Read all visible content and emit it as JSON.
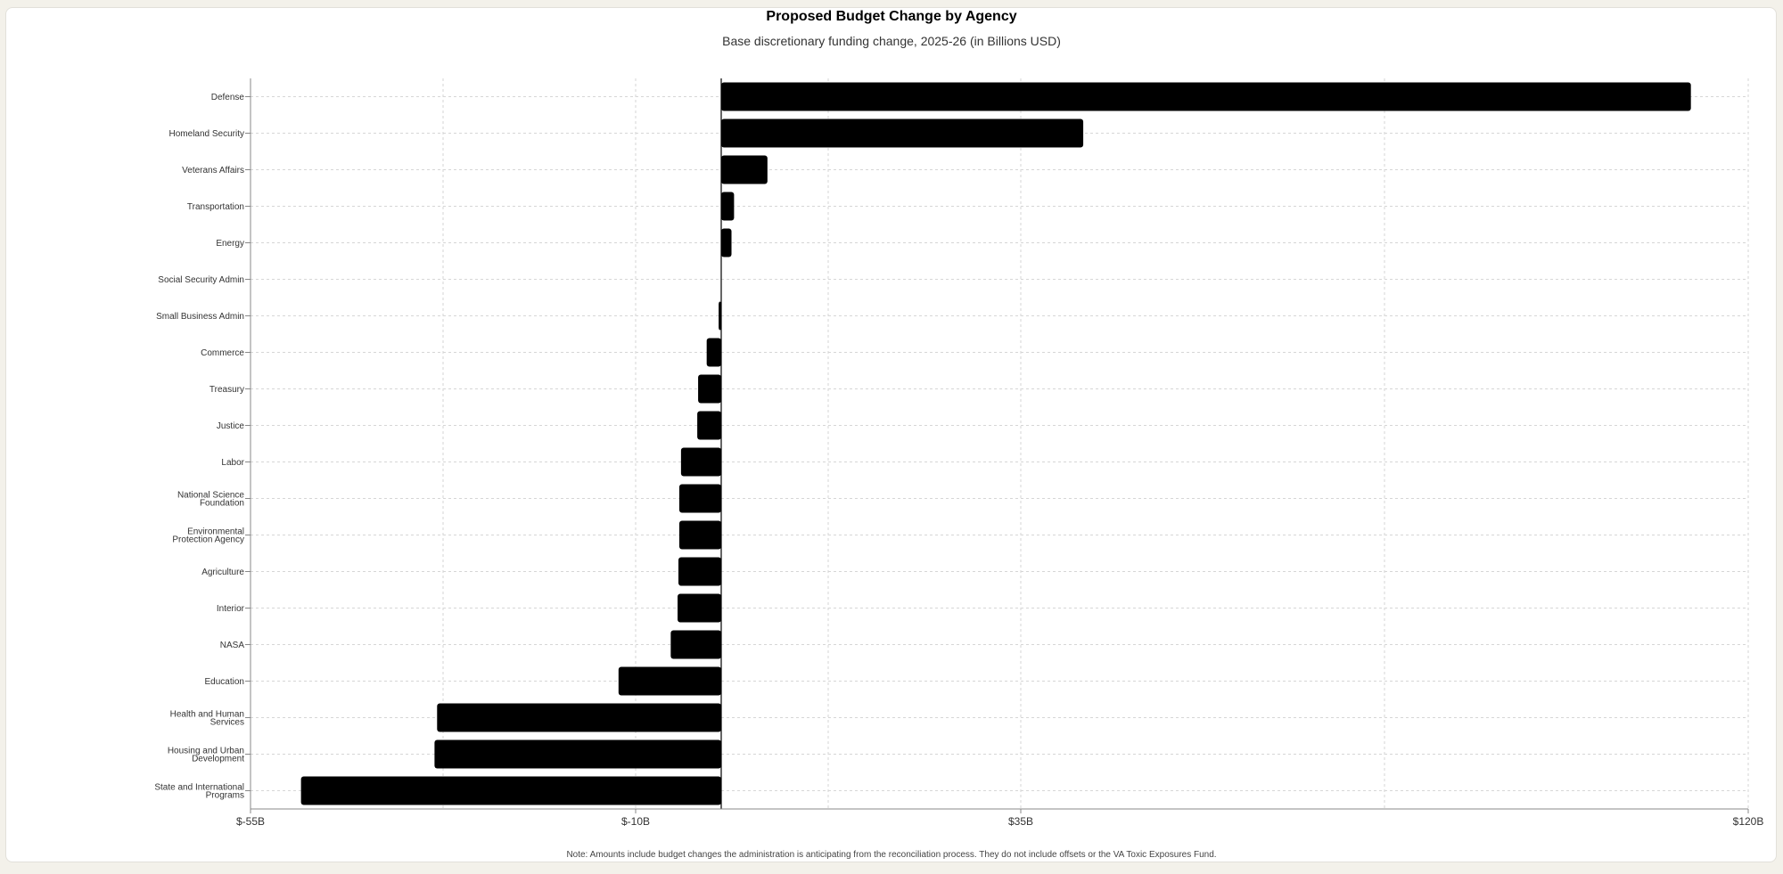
{
  "chart_data": {
    "type": "bar",
    "orientation": "horizontal",
    "title": "Proposed Budget Change by Agency",
    "subtitle": "Base discretionary funding change, 2025-26 (in Billions USD)",
    "xlabel": "",
    "ylabel": "",
    "xlim": [
      -55,
      120
    ],
    "x_ticks": [
      -55,
      -10,
      35,
      120
    ],
    "x_tick_labels": [
      "$-55B",
      "$-10B",
      "$35B",
      "$120B"
    ],
    "grid": true,
    "bar_color": "#000000",
    "categories": [
      "Defense",
      "Homeland Security",
      "Veterans Affairs",
      "Transportation",
      "Energy",
      "Social Security Admin",
      "Small Business Admin",
      "Commerce",
      "Treasury",
      "Justice",
      "Labor",
      "National Science Foundation",
      "Environmental Protection Agency",
      "Agriculture",
      "Interior",
      "NASA",
      "Education",
      "Health and Human Services",
      "Housing and Urban Development",
      "State and International Programs"
    ],
    "category_lines": [
      [
        "Defense"
      ],
      [
        "Homeland Security"
      ],
      [
        "Veterans Affairs"
      ],
      [
        "Transportation"
      ],
      [
        "Energy"
      ],
      [
        "Social Security Admin"
      ],
      [
        "Small Business Admin"
      ],
      [
        "Commerce"
      ],
      [
        "Treasury"
      ],
      [
        "Justice"
      ],
      [
        "Labor"
      ],
      [
        "National Science",
        "Foundation"
      ],
      [
        "Environmental",
        "Protection Agency"
      ],
      [
        "Agriculture"
      ],
      [
        "Interior"
      ],
      [
        "NASA"
      ],
      [
        "Education"
      ],
      [
        "Health and Human",
        "Services"
      ],
      [
        "Housing and Urban",
        "Development"
      ],
      [
        "State and International",
        "Programs"
      ]
    ],
    "values": [
      113.3,
      42.3,
      5.4,
      1.5,
      1.2,
      0.0,
      -0.3,
      -1.7,
      -2.7,
      -2.8,
      -4.7,
      -4.9,
      -4.9,
      -5.0,
      -5.1,
      -5.9,
      -12.0,
      -33.2,
      -33.5,
      -49.1
    ]
  },
  "note": "Note: Amounts include budget changes the administration is anticipating from the reconciliation process. They do not include offsets or the VA Toxic Exposures Fund."
}
